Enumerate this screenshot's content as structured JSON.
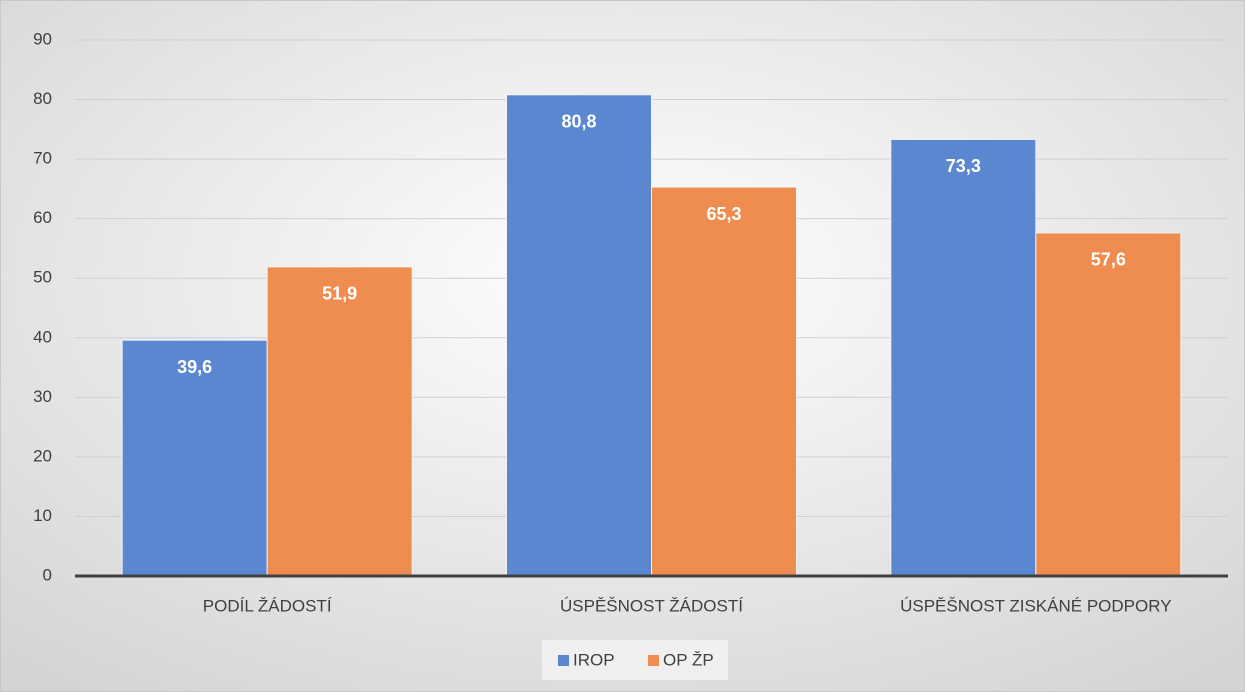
{
  "chart_data": {
    "type": "bar",
    "categories": [
      "PODÍL ŽÁDOSTÍ",
      "ÚSPĚŠNOST ŽÁDOSTÍ",
      "ÚSPĚŠNOST ZISKÁNÉ PODPORY"
    ],
    "series": [
      {
        "name": "IROP",
        "color": "#5b87d1",
        "values": [
          39.6,
          80.8,
          73.3
        ],
        "value_labels": [
          "39,6",
          "80,8",
          "73,3"
        ]
      },
      {
        "name": "OP ŽP",
        "color": "#ef8c50",
        "values": [
          51.9,
          65.3,
          57.6
        ],
        "value_labels": [
          "51,9",
          "65,3",
          "57,6"
        ]
      }
    ],
    "ylim": [
      0,
      90
    ],
    "yticks": [
      0,
      10,
      20,
      30,
      40,
      50,
      60,
      70,
      80,
      90
    ],
    "grid": true,
    "legend": "bottom"
  }
}
